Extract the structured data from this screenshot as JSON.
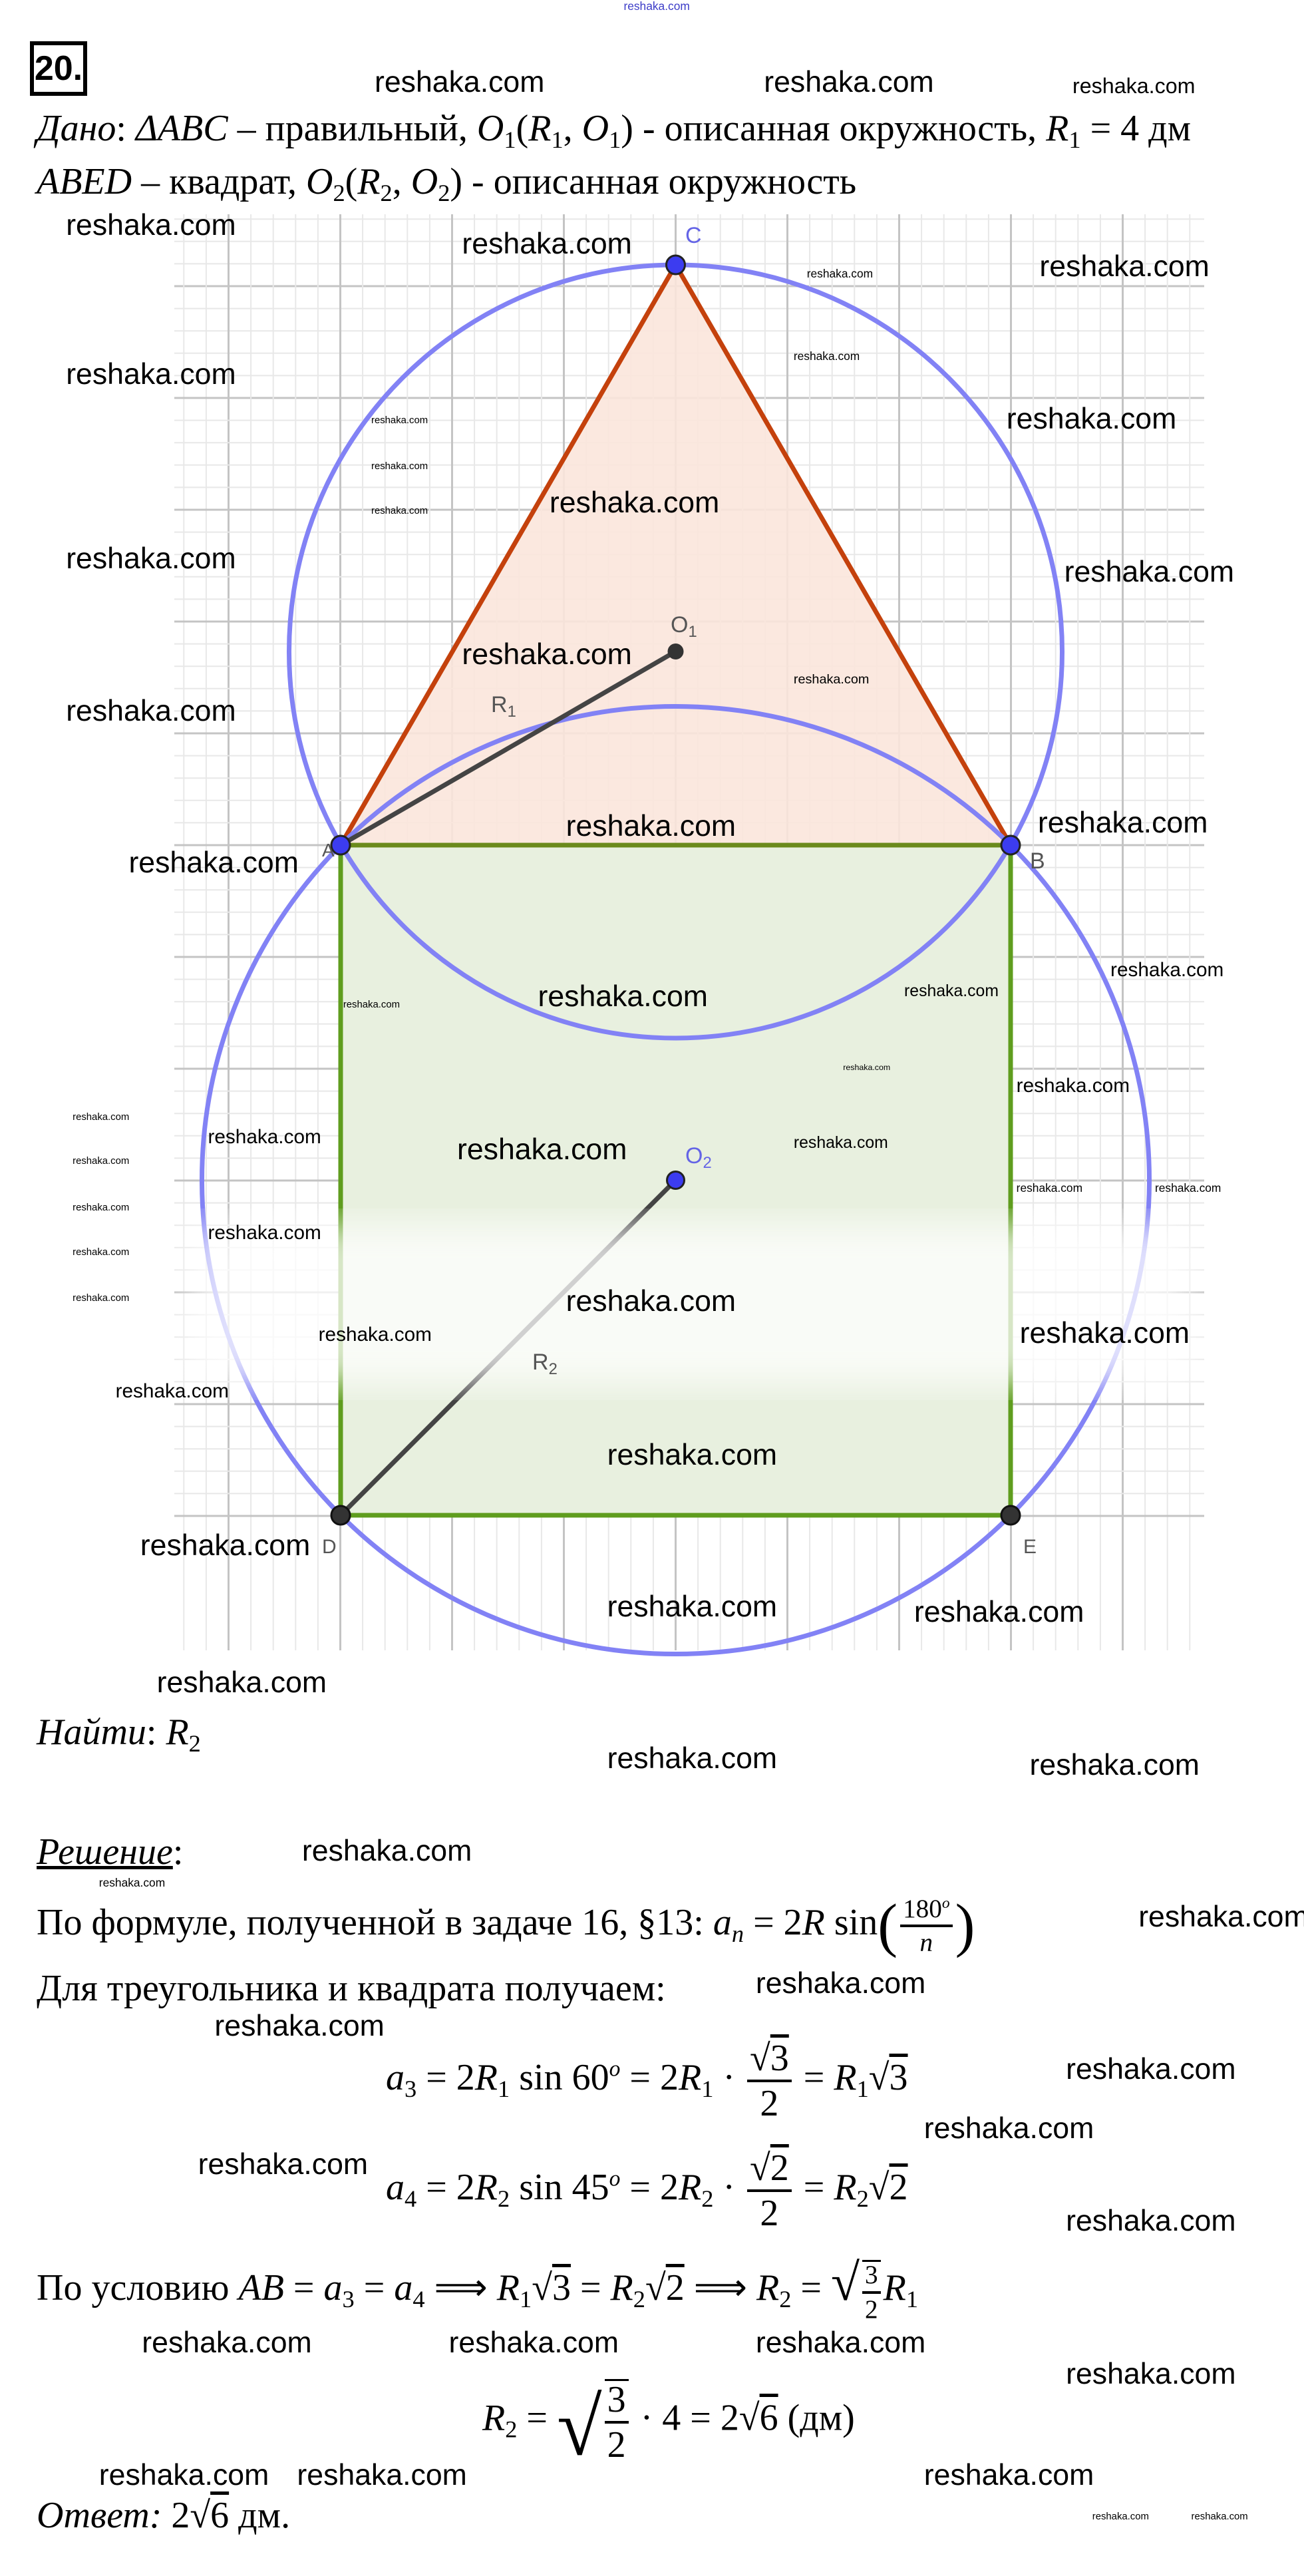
{
  "watermark": "reshaka.com",
  "header": {
    "problem_number": "20."
  },
  "given": {
    "l1": [
      "Дано",
      ": ",
      "ΔABC",
      " – правильный, ",
      "O",
      "1",
      "(",
      "R",
      "1",
      ", ",
      "O",
      "1",
      ") - описанная окружность, ",
      "R",
      "1",
      " = 4 дм"
    ],
    "l2": [
      "ABED",
      " – квадрат, ",
      "O",
      "2",
      "(",
      "R",
      "2",
      ", ",
      "O",
      "2",
      ") - описанная окружность"
    ]
  },
  "figure": {
    "labels": {
      "C": "C",
      "A": "A",
      "B": "B",
      "D": "D",
      "E": "E",
      "O1": "O",
      "O1_sub": "1",
      "O2": "O",
      "O2_sub": "2",
      "R1": "R",
      "R1_sub": "1",
      "R2": "R",
      "R2_sub": "2"
    },
    "colors": {
      "circle": "#8282f5",
      "triangle_stroke": "#c4410c",
      "triangle_fill": "#fbe5dc",
      "square_stroke": "#5f9d1e",
      "square_fill": "#e8f0df",
      "point_blue": "#3c3cf0",
      "point_dark": "#333333",
      "radius": "#444444",
      "grid_major": "#c4c4c4",
      "grid_minor": "#e8e8e8"
    }
  },
  "find": [
    "Найти",
    ": ",
    "R",
    "2"
  ],
  "solution": {
    "heading": [
      "Решение",
      ":"
    ],
    "l1": [
      "По формуле, полученной в задаче 16, §13: ",
      "a",
      "n",
      " = 2",
      "R",
      "  sin",
      "(",
      "180",
      "o",
      "n",
      ")"
    ],
    "l2": "Для треугольника и квадрата получаем:",
    "eq3": [
      "a",
      "3",
      " = 2",
      "R",
      "1",
      " sin 60",
      "o",
      " = 2",
      "R",
      "1",
      " · ",
      "√",
      "3",
      "2",
      " = ",
      "R",
      "1",
      "√",
      "3"
    ],
    "eq4": [
      "a",
      "4",
      " = 2",
      "R",
      "2",
      " sin 45",
      "o",
      " = 2",
      "R",
      "2",
      " · ",
      "√",
      "2",
      "2",
      " = ",
      "R",
      "2",
      "√",
      "2"
    ],
    "l3": [
      "По условию ",
      "AB",
      " = ",
      "a",
      "3",
      " = ",
      "a",
      "4",
      "  ⟹ ",
      "R",
      "1",
      "√",
      "3",
      " = ",
      "R",
      "2",
      "√",
      "2",
      "  ⟹ ",
      "R",
      "2",
      " = ",
      "√",
      "3",
      "2",
      "R",
      "1"
    ],
    "eq_final": [
      "R",
      "2",
      " = ",
      "√",
      "3",
      "2",
      " · 4 = 2",
      "√",
      "6",
      " (дм)"
    ],
    "answer": [
      "Ответ:",
      " 2",
      "√",
      "6",
      " дм."
    ]
  }
}
